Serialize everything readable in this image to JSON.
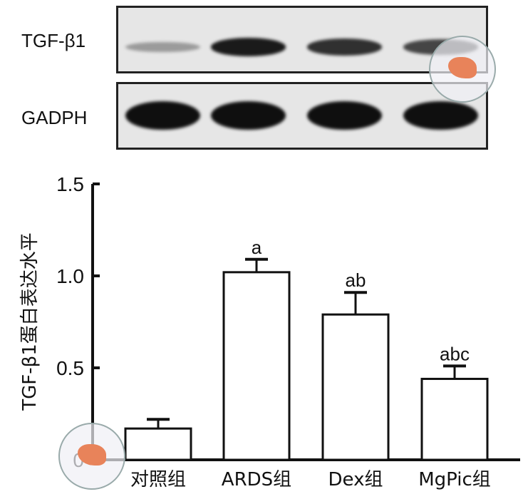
{
  "blot": {
    "rows": [
      {
        "label": "TGF-β1",
        "intensity": [
          0.35,
          0.95,
          0.85,
          0.75
        ]
      },
      {
        "label": "GADPH",
        "intensity": [
          1,
          1,
          1,
          1
        ]
      }
    ]
  },
  "chart_data": {
    "type": "bar",
    "categories": [
      "对照组",
      "ARDS组",
      "Dex组",
      "MgPic组"
    ],
    "values": [
      0.17,
      1.02,
      0.79,
      0.44
    ],
    "error_upper": [
      0.22,
      1.09,
      0.91,
      0.51
    ],
    "annotations": [
      "",
      "a",
      "ab",
      "abc"
    ],
    "ylabel": "TGF-β1蛋白表达水平",
    "xlabel": "",
    "ylim": [
      0,
      1.5
    ],
    "yticks": [
      "0",
      "0.5",
      "1.0",
      "1.5"
    ],
    "bar_fill": "#ffffff",
    "bar_stroke": "#111111"
  }
}
